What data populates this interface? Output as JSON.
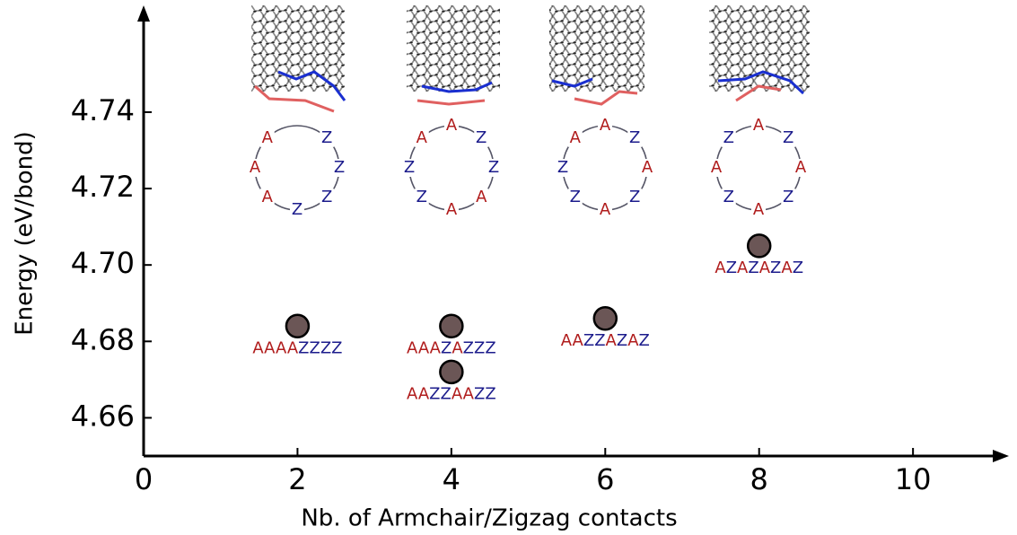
{
  "chart_data": {
    "type": "scatter",
    "x_label": "Nb. of Armchair/Zigzag contacts",
    "y_label": "Energy (eV/bond)",
    "xlim": [
      0,
      11.2
    ],
    "ylim": [
      4.65,
      4.767
    ],
    "xticks": [
      0,
      2,
      4,
      6,
      8,
      10
    ],
    "yticks": [
      4.66,
      4.68,
      {
        "value": 4.7,
        "label": "4.70"
      },
      4.72,
      4.74
    ],
    "x": [
      2,
      4,
      4,
      6,
      8
    ],
    "values": [
      4.684,
      4.684,
      4.672,
      4.686,
      4.705
    ],
    "labels": [
      "AAAAZZZZ",
      "AAAZAZZZ",
      "AAZZAAZZ",
      "AAZZAZAZ",
      "AZAZAZAZ"
    ],
    "color": "#6b5656",
    "letter_colors": {
      "A": "#b01c1c",
      "Z": "#1c1c8c"
    },
    "rings": [
      [
        null,
        "Z",
        "Z",
        "Z",
        "Z",
        "A",
        "A",
        "A"
      ],
      [
        "A",
        "Z",
        "Z",
        "A",
        "A",
        "Z",
        "Z",
        "A"
      ],
      [
        "A",
        "Z",
        "A",
        "Z",
        "A",
        "Z",
        "Z",
        "A"
      ],
      [
        "A",
        "Z",
        "A",
        "Z",
        "A",
        "Z",
        "A",
        "Z"
      ]
    ]
  }
}
